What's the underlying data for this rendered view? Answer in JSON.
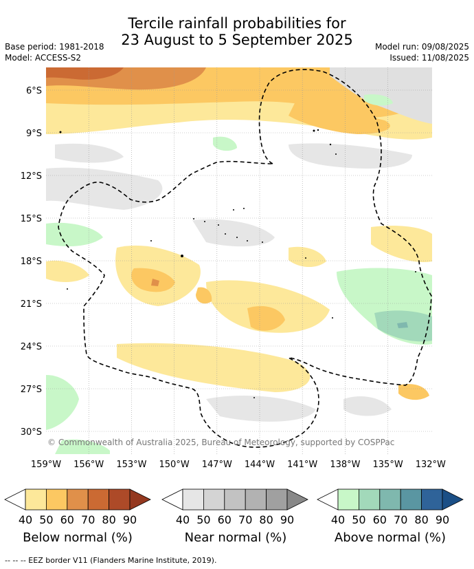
{
  "title_line1": "Tercile rainfall probabilities for",
  "title_line2": "23 August to 5 September 2025",
  "base_period": "Base period: 1981-2018",
  "model": "Model: ACCESS-S2",
  "model_run": "Model run: 09/08/2025",
  "issued": "Issued: 11/08/2025",
  "copyright": "© Commonwealth of Australia 2025, Bureau of Meteorology, supported by COSPPac",
  "lat_labels": [
    "6°S",
    "9°S",
    "12°S",
    "15°S",
    "18°S",
    "21°S",
    "24°S",
    "27°S",
    "30°S"
  ],
  "lon_labels": [
    "159°W",
    "156°W",
    "153°W",
    "150°W",
    "147°W",
    "144°W",
    "141°W",
    "138°W",
    "135°W",
    "132°W"
  ],
  "legends": [
    {
      "label": "Below normal (%)",
      "ticks": [
        "40",
        "50",
        "60",
        "70",
        "80",
        "90"
      ],
      "colors": [
        "#ffffff",
        "#fde89a",
        "#fcc862",
        "#e0904a",
        "#cb6a33",
        "#ad4a28",
        "#94381f"
      ]
    },
    {
      "label": "Near normal (%)",
      "ticks": [
        "40",
        "50",
        "60",
        "70",
        "80",
        "90"
      ],
      "colors": [
        "#ffffff",
        "#e6e6e6",
        "#d4d4d4",
        "#c2c2c2",
        "#b2b2b2",
        "#a0a0a0",
        "#888888"
      ]
    },
    {
      "label": "Above normal (%)",
      "ticks": [
        "40",
        "50",
        "60",
        "70",
        "80",
        "90"
      ],
      "colors": [
        "#ffffff",
        "#c8f7c8",
        "#a2d9ba",
        "#7fb8ae",
        "#5a96a2",
        "#2f6399",
        "#1b4f86"
      ]
    }
  ],
  "footer": "--  --  -- EEZ border V11 (Flanders Marine Institute, 2019)."
}
